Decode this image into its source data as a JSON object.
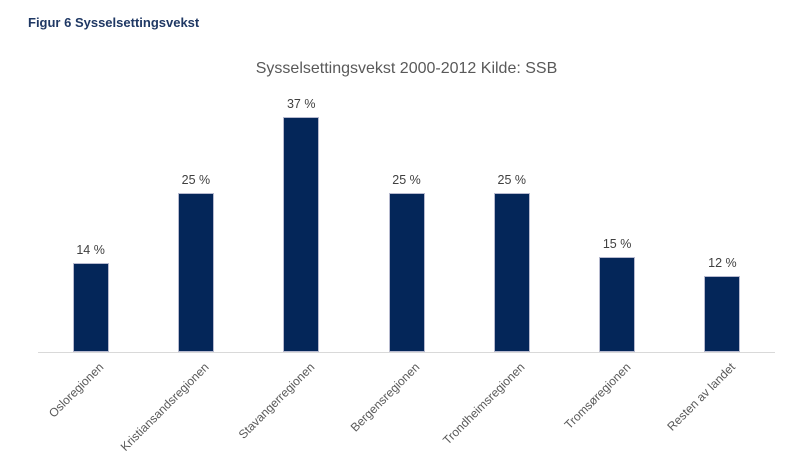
{
  "figure_caption": "Figur 6 Sysselsettingsvekst",
  "colors": {
    "background": "#ffffff",
    "caption_text": "#1f3864",
    "chart_title_text": "#595959",
    "bar_fill": "#042659",
    "bar_border": "#b7bacf",
    "axis_line": "#d9d9d9",
    "category_label_text": "#595959",
    "value_label_text": "#404040"
  },
  "chart_data": {
    "type": "bar",
    "title": "Sysselsettingsvekst 2000-2012 Kilde: SSB",
    "xlabel": "",
    "ylabel": "",
    "categories": [
      "Osloregionen",
      "Kristiansandsregionen",
      "Stavangerregionen",
      "Bergensregionen",
      "Trondheimsregionen",
      "Tromsøregionen",
      "Resten av landet"
    ],
    "values": [
      14,
      25,
      37,
      25,
      25,
      15,
      12
    ],
    "value_labels": [
      "14 %",
      "25 %",
      "37 %",
      "25 %",
      "25 %",
      "15 %",
      "12 %"
    ],
    "unit": "%",
    "ylim": [
      0,
      40
    ],
    "grid": false,
    "legend": "none",
    "category_label_rotation_deg": -45
  }
}
